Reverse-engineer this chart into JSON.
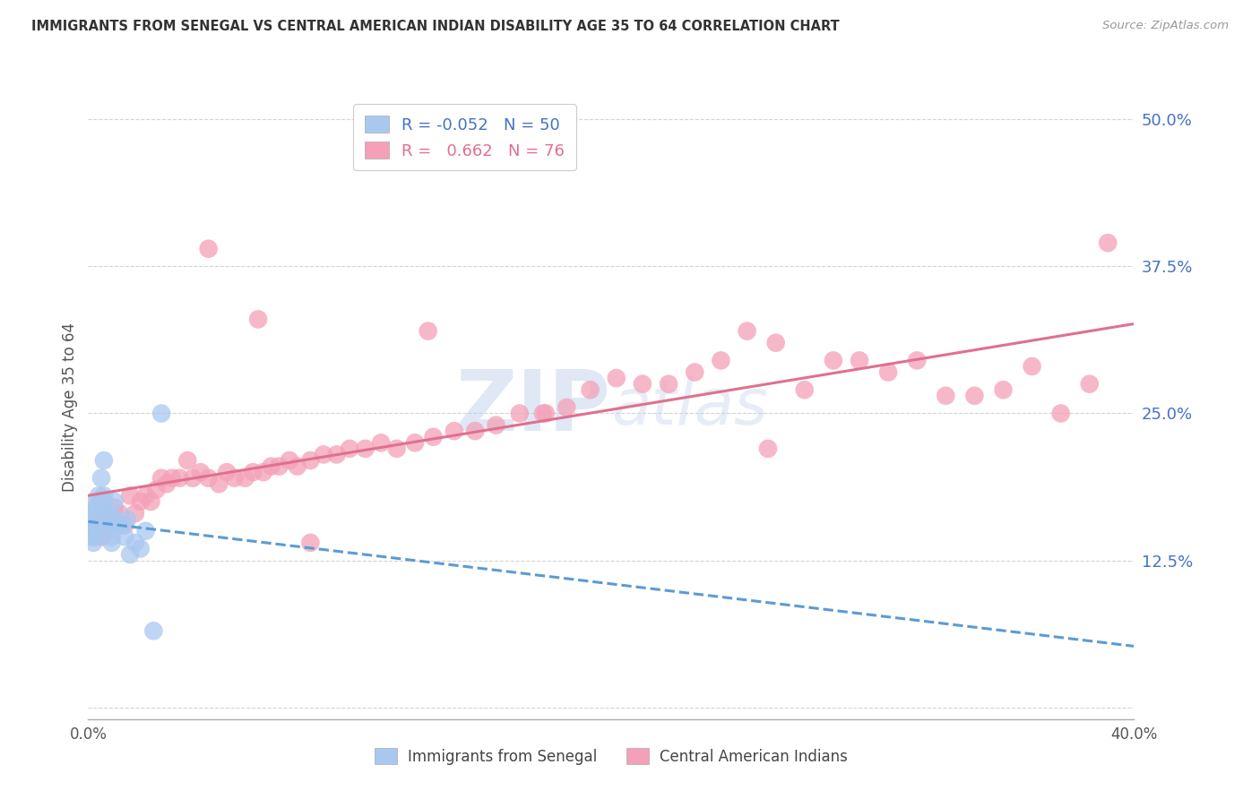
{
  "title": "IMMIGRANTS FROM SENEGAL VS CENTRAL AMERICAN INDIAN DISABILITY AGE 35 TO 64 CORRELATION CHART",
  "source": "Source: ZipAtlas.com",
  "ylabel": "Disability Age 35 to 64",
  "xlim": [
    0.0,
    0.4
  ],
  "ylim": [
    -0.01,
    0.52
  ],
  "ytick_vals": [
    0.0,
    0.125,
    0.25,
    0.375,
    0.5
  ],
  "ytick_labels": [
    "",
    "12.5%",
    "25.0%",
    "37.5%",
    "50.0%"
  ],
  "xtick_vals": [
    0.0,
    0.4
  ],
  "xtick_labels": [
    "0.0%",
    "40.0%"
  ],
  "grid_color": "#d0d0d0",
  "background_color": "#ffffff",
  "series1_label": "Immigrants from Senegal",
  "series1_R": "-0.052",
  "series1_N": "50",
  "series1_scatter_color": "#a8c8f0",
  "series1_line_color": "#5b9bd5",
  "series2_label": "Central American Indians",
  "series2_R": "0.662",
  "series2_N": "76",
  "series2_scatter_color": "#f4a0b8",
  "series2_line_color": "#e07090",
  "watermark_zip": "ZIP",
  "watermark_atlas": "atlas",
  "senegal_x": [
    0.001,
    0.001,
    0.001,
    0.001,
    0.001,
    0.002,
    0.002,
    0.002,
    0.002,
    0.002,
    0.002,
    0.002,
    0.003,
    0.003,
    0.003,
    0.003,
    0.003,
    0.003,
    0.003,
    0.004,
    0.004,
    0.004,
    0.004,
    0.004,
    0.005,
    0.005,
    0.005,
    0.005,
    0.006,
    0.006,
    0.006,
    0.007,
    0.007,
    0.008,
    0.008,
    0.009,
    0.009,
    0.01,
    0.01,
    0.011,
    0.012,
    0.013,
    0.014,
    0.015,
    0.016,
    0.018,
    0.02,
    0.022,
    0.025,
    0.028
  ],
  "senegal_y": [
    0.155,
    0.16,
    0.165,
    0.15,
    0.145,
    0.155,
    0.16,
    0.165,
    0.14,
    0.145,
    0.155,
    0.15,
    0.155,
    0.165,
    0.16,
    0.155,
    0.145,
    0.17,
    0.175,
    0.16,
    0.155,
    0.165,
    0.17,
    0.18,
    0.155,
    0.165,
    0.175,
    0.195,
    0.175,
    0.21,
    0.18,
    0.155,
    0.165,
    0.165,
    0.155,
    0.14,
    0.145,
    0.16,
    0.175,
    0.155,
    0.155,
    0.155,
    0.145,
    0.16,
    0.13,
    0.14,
    0.135,
    0.15,
    0.065,
    0.25
  ],
  "camindian_x": [
    0.002,
    0.003,
    0.004,
    0.005,
    0.006,
    0.007,
    0.008,
    0.009,
    0.01,
    0.012,
    0.014,
    0.016,
    0.018,
    0.02,
    0.022,
    0.024,
    0.026,
    0.028,
    0.03,
    0.032,
    0.035,
    0.038,
    0.04,
    0.043,
    0.046,
    0.05,
    0.053,
    0.056,
    0.06,
    0.063,
    0.067,
    0.07,
    0.073,
    0.077,
    0.08,
    0.085,
    0.09,
    0.095,
    0.1,
    0.106,
    0.112,
    0.118,
    0.125,
    0.132,
    0.14,
    0.148,
    0.156,
    0.165,
    0.174,
    0.183,
    0.192,
    0.202,
    0.212,
    0.222,
    0.232,
    0.242,
    0.252,
    0.263,
    0.274,
    0.285,
    0.295,
    0.306,
    0.317,
    0.328,
    0.339,
    0.35,
    0.361,
    0.372,
    0.383,
    0.39,
    0.046,
    0.065,
    0.085,
    0.13,
    0.175,
    0.26
  ],
  "camindian_y": [
    0.15,
    0.145,
    0.16,
    0.145,
    0.155,
    0.165,
    0.15,
    0.16,
    0.17,
    0.165,
    0.155,
    0.18,
    0.165,
    0.175,
    0.18,
    0.175,
    0.185,
    0.195,
    0.19,
    0.195,
    0.195,
    0.21,
    0.195,
    0.2,
    0.195,
    0.19,
    0.2,
    0.195,
    0.195,
    0.2,
    0.2,
    0.205,
    0.205,
    0.21,
    0.205,
    0.21,
    0.215,
    0.215,
    0.22,
    0.22,
    0.225,
    0.22,
    0.225,
    0.23,
    0.235,
    0.235,
    0.24,
    0.25,
    0.25,
    0.255,
    0.27,
    0.28,
    0.275,
    0.275,
    0.285,
    0.295,
    0.32,
    0.31,
    0.27,
    0.295,
    0.295,
    0.285,
    0.295,
    0.265,
    0.265,
    0.27,
    0.29,
    0.25,
    0.275,
    0.395,
    0.39,
    0.33,
    0.14,
    0.32,
    0.25,
    0.22
  ]
}
